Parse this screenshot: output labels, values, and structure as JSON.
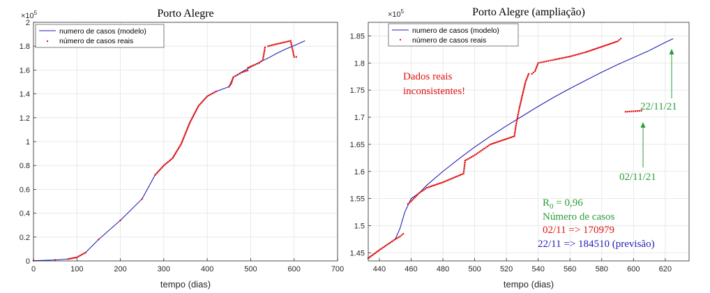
{
  "chart_data": [
    {
      "type": "line",
      "title": "Porto Alegre",
      "xlabel": "tempo (dias)",
      "ylabel": "",
      "exponent_label": "×10",
      "exponent_power": "5",
      "xlim": [
        0,
        700
      ],
      "ylim": [
        0,
        2
      ],
      "xticks": [
        0,
        100,
        200,
        300,
        400,
        500,
        600,
        700
      ],
      "xtick_labels": [
        "0",
        "100",
        "200",
        "300",
        "400",
        "500",
        "600",
        "700"
      ],
      "yticks": [
        0,
        0.2,
        0.4,
        0.6,
        0.8,
        1,
        1.2,
        1.4,
        1.6,
        1.8,
        2
      ],
      "ytick_labels": [
        "0",
        "0.2",
        "0.4",
        "0.6",
        "0.8",
        "1",
        "1.2",
        "1.4",
        "1.6",
        "1.8",
        "2"
      ],
      "grid": true,
      "legend_position": "top-left",
      "legend": [
        "numero de casos (modelo)",
        "número de casos reais"
      ],
      "series": [
        {
          "name": "numero de casos (modelo)",
          "style": "line",
          "color": "#1f1fb4",
          "x": [
            0,
            50,
            80,
            100,
            120,
            150,
            200,
            250,
            280,
            300,
            320,
            340,
            360,
            380,
            400,
            420,
            450,
            460,
            480,
            500,
            520,
            540,
            560,
            580,
            600,
            625
          ],
          "y": [
            0.002,
            0.008,
            0.016,
            0.03,
            0.07,
            0.18,
            0.34,
            0.52,
            0.72,
            0.8,
            0.86,
            0.98,
            1.16,
            1.3,
            1.38,
            1.42,
            1.46,
            1.54,
            1.585,
            1.625,
            1.665,
            1.7,
            1.74,
            1.775,
            1.805,
            1.845
          ]
        },
        {
          "name": "número de casos reais",
          "style": "markers",
          "color": "#e01010",
          "x": [
            0,
            50,
            80,
            100,
            120,
            150,
            200,
            250,
            280,
            300,
            320,
            340,
            360,
            380,
            400,
            420,
            450,
            455,
            460,
            470,
            480,
            493,
            494,
            510,
            520,
            528,
            533,
            540,
            560,
            580,
            592,
            600,
            605
          ],
          "y": [
            0.002,
            0.008,
            0.016,
            0.03,
            0.07,
            0.18,
            0.34,
            0.52,
            0.72,
            0.8,
            0.86,
            0.98,
            1.16,
            1.3,
            1.38,
            1.42,
            1.46,
            1.485,
            1.54,
            1.56,
            1.58,
            1.596,
            1.62,
            1.645,
            1.66,
            1.685,
            1.79,
            1.8,
            1.818,
            1.835,
            1.845,
            1.71,
            1.71
          ]
        }
      ]
    },
    {
      "type": "line",
      "title": "Porto Alegre (ampliação)",
      "xlabel": "tempo (dias)",
      "ylabel": "",
      "exponent_label": "×10",
      "exponent_power": "5",
      "xlim": [
        433,
        635
      ],
      "ylim": [
        1.435,
        1.875
      ],
      "xticks": [
        440,
        460,
        480,
        500,
        520,
        540,
        560,
        580,
        600,
        620
      ],
      "xtick_labels": [
        "440",
        "460",
        "480",
        "500",
        "520",
        "540",
        "560",
        "580",
        "600",
        "620"
      ],
      "yticks": [
        1.45,
        1.5,
        1.55,
        1.6,
        1.65,
        1.7,
        1.75,
        1.8,
        1.85
      ],
      "ytick_labels": [
        "1.45",
        "1.5",
        "1.55",
        "1.6",
        "1.65",
        "1.7",
        "1.75",
        "1.8",
        "1.85"
      ],
      "grid": true,
      "legend_position": "top-left",
      "legend": [
        "numero de casos (modelo)",
        "número de casos reais"
      ],
      "series": [
        {
          "name": "numero de casos (modelo)",
          "style": "line",
          "color": "#1f1fb4",
          "x": [
            433,
            440,
            445,
            450,
            453,
            456,
            460,
            465,
            470,
            480,
            490,
            500,
            510,
            520,
            530,
            540,
            550,
            560,
            570,
            580,
            590,
            600,
            610,
            620,
            625
          ],
          "y": [
            1.44,
            1.455,
            1.465,
            1.475,
            1.495,
            1.525,
            1.55,
            1.56,
            1.575,
            1.6,
            1.623,
            1.645,
            1.665,
            1.684,
            1.702,
            1.72,
            1.737,
            1.753,
            1.768,
            1.783,
            1.797,
            1.81,
            1.823,
            1.838,
            1.845
          ]
        },
        {
          "name": "número de casos reais",
          "style": "markers",
          "color": "#e01010",
          "x": [
            433,
            440,
            445,
            450,
            453,
            455,
            458,
            460,
            465,
            470,
            480,
            493,
            494,
            500,
            505,
            510,
            515,
            520,
            525,
            526,
            528,
            530,
            532,
            534,
            536,
            538,
            540,
            545,
            550,
            560,
            570,
            580,
            590,
            592,
            595,
            600,
            605
          ],
          "y": [
            1.44,
            1.455,
            1.465,
            1.475,
            1.48,
            1.485,
            1.54,
            1.545,
            1.56,
            1.57,
            1.58,
            1.596,
            1.62,
            1.63,
            1.64,
            1.65,
            1.655,
            1.66,
            1.665,
            1.685,
            1.715,
            1.74,
            1.765,
            1.78,
            1.78,
            1.785,
            1.8,
            1.803,
            1.806,
            1.812,
            1.82,
            1.83,
            1.84,
            1.845,
            1.71,
            1.711,
            1.712
          ]
        }
      ],
      "annotations": [
        {
          "text": "Dados reais",
          "color": "#e01010"
        },
        {
          "text": "inconsistentes!",
          "color": "#e01010"
        },
        {
          "text": "22/11/21",
          "color": "#2a9d3a",
          "arrow_to": [
            624,
            1.843
          ]
        },
        {
          "text": "02/11/21",
          "color": "#2a9d3a",
          "arrow_to": [
            604,
            1.712
          ]
        },
        {
          "text": "R",
          "subscript": "0",
          "suffix": " = 0,96",
          "color": "#2a9d3a"
        },
        {
          "text": "Número de casos",
          "color": "#2a9d3a"
        },
        {
          "text": "02/11 => 170979",
          "color": "#e01010"
        },
        {
          "text": "22/11 => 184510 (previsão)",
          "color": "#1f1fb4"
        }
      ]
    }
  ]
}
